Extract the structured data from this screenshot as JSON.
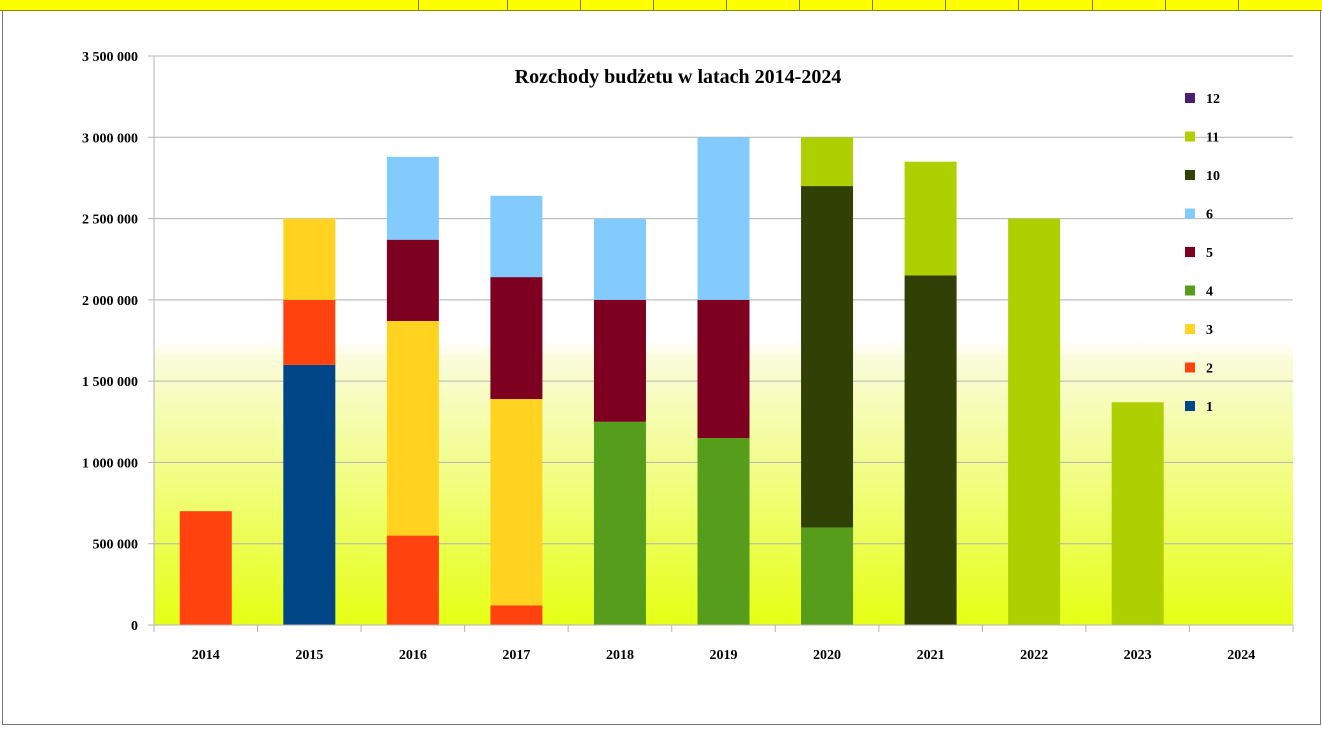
{
  "sheet_header": {
    "color": "#ffff00"
  },
  "chart_data": {
    "type": "stacked-bar",
    "title": "Rozchody budżetu w latach 2014-2024",
    "xlabel": "",
    "ylabel": "",
    "categories": [
      "2014",
      "2015",
      "2016",
      "2017",
      "2018",
      "2019",
      "2020",
      "2021",
      "2022",
      "2023",
      "2024"
    ],
    "ylim": [
      0,
      3500000
    ],
    "ytick_values": [
      0,
      500000,
      1000000,
      1500000,
      2000000,
      2500000,
      3000000,
      3500000
    ],
    "ytick_labels": [
      "0",
      "500 000",
      "1 000 000",
      "1 500 000",
      "2 000 000",
      "2 500 000",
      "3 000 000",
      "3 500 000"
    ],
    "grid": true,
    "legend_position": "right",
    "plot_background": "gradient white (top) to yellow (bottom)",
    "series": [
      {
        "name": "1",
        "color": "#004586",
        "values": [
          0,
          1600000,
          0,
          0,
          0,
          0,
          0,
          0,
          0,
          0,
          0
        ]
      },
      {
        "name": "2",
        "color": "#ff420e",
        "values": [
          700000,
          400000,
          550000,
          120000,
          0,
          0,
          0,
          0,
          0,
          0,
          0
        ]
      },
      {
        "name": "3",
        "color": "#ffd320",
        "values": [
          0,
          500000,
          1320000,
          1270000,
          0,
          0,
          0,
          0,
          0,
          0,
          0
        ]
      },
      {
        "name": "4",
        "color": "#579d1c",
        "values": [
          0,
          0,
          0,
          0,
          1250000,
          1150000,
          600000,
          0,
          0,
          0,
          0
        ]
      },
      {
        "name": "5",
        "color": "#7e0021",
        "values": [
          0,
          0,
          500000,
          750000,
          750000,
          850000,
          0,
          0,
          0,
          0,
          0
        ]
      },
      {
        "name": "6",
        "color": "#83caff",
        "values": [
          0,
          0,
          510000,
          500000,
          500000,
          1000000,
          0,
          0,
          0,
          0,
          0
        ]
      },
      {
        "name": "10",
        "color": "#314004",
        "values": [
          0,
          0,
          0,
          0,
          0,
          0,
          2100000,
          2150000,
          0,
          0,
          0
        ]
      },
      {
        "name": "11",
        "color": "#aecf00",
        "values": [
          0,
          0,
          0,
          0,
          0,
          0,
          300000,
          700000,
          2500000,
          1370000,
          0
        ]
      },
      {
        "name": "12",
        "color": "#4b1f6f",
        "values": [
          0,
          0,
          0,
          0,
          0,
          0,
          0,
          0,
          0,
          0,
          0
        ]
      }
    ],
    "legend_order": [
      "12",
      "11",
      "10",
      "6",
      "5",
      "4",
      "3",
      "2",
      "1"
    ]
  }
}
